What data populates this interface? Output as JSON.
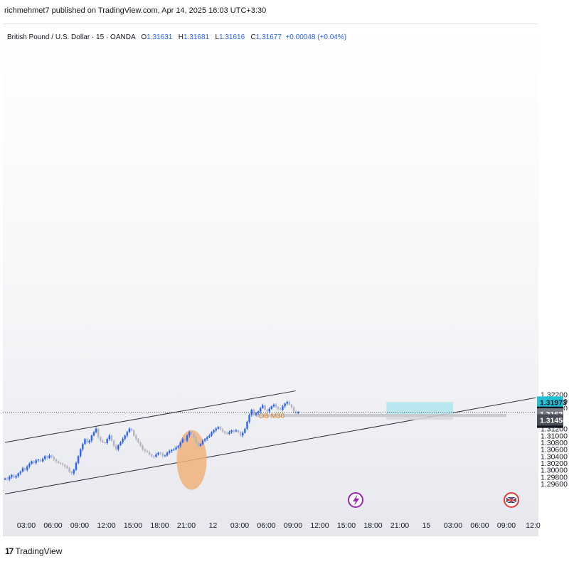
{
  "publish_line": "richmehmet7 published on TradingView.com, Apr 14, 2025 16:03 UTC+3:30",
  "legend": {
    "symbol": "British Pound / U.S. Dollar · 15 · OANDA",
    "open_label": "O",
    "open": "1.31631",
    "high_label": "H",
    "high": "1.31681",
    "low_label": "L",
    "low": "1.31616",
    "close_label": "C",
    "close": "1.31677",
    "change": "+0.00048 (+0.04%)"
  },
  "brand": {
    "logo": "17",
    "name": "TradingView"
  },
  "colors": {
    "up": "#2962ff",
    "down": "#b2b5be",
    "target_zone": "#b2e5ee",
    "ob_zone": "#c4c6cc",
    "circle": "#f0b27a",
    "last_price": "#131722",
    "target_tag": "#22c1d6"
  },
  "chart_data": {
    "type": "candlestick",
    "title": "British Pound / U.S. Dollar · 15 · OANDA",
    "ylim": [
      1.295,
      1.3225
    ],
    "y_ticks": [
      "1.29600",
      "1.29800",
      "1.30000",
      "1.30200",
      "1.30400",
      "1.30600",
      "1.30800",
      "1.31000",
      "1.31200",
      "1.31400",
      "1.31600",
      "1.31800",
      "1.32000",
      "1.32200"
    ],
    "x_ticks": [
      "03:00",
      "06:00",
      "09:00",
      "12:00",
      "15:00",
      "18:00",
      "21:00",
      "12",
      "03:00",
      "06:00",
      "09:00",
      "12:00",
      "15:00",
      "18:00",
      "21:00",
      "15",
      "03:00",
      "06:00",
      "09:00",
      "12:0"
    ],
    "price_labels": [
      {
        "label": "target",
        "value": "1.31973"
      },
      {
        "label": "last",
        "value": "1.31677",
        "countdown": "11:34"
      },
      {
        "label": "ob_top",
        "value": "1.31628"
      },
      {
        "label": "ob_bottom",
        "value": "1.31456"
      }
    ],
    "annotation_text": "OB M30",
    "zones": [
      {
        "name": "target-zone",
        "from_y": 1.31628,
        "to_y": 1.31973,
        "x_start_tick": 13.5,
        "x_end_tick": 16.0
      },
      {
        "name": "ob-zone",
        "from_y": 1.3154,
        "to_y": 1.31628,
        "x_start_tick": 8.6,
        "x_end_tick": 18.0
      },
      {
        "name": "ob-zone-lower",
        "from_y": 1.31456,
        "to_y": 1.3154,
        "x_start_tick": 13.5,
        "x_end_tick": 16.0
      }
    ],
    "trendlines": [
      {
        "name": "upper-channel-line",
        "points": [
          [
            -0.8,
            1.308
          ],
          [
            10.1,
            1.323
          ]
        ]
      },
      {
        "name": "lower-channel-line",
        "points": [
          [
            -0.8,
            1.293
          ],
          [
            19.1,
            1.321
          ]
        ]
      }
    ],
    "circle": {
      "x_tick": 6.2,
      "y": 1.3029
    },
    "series": [
      {
        "name": "GBPUSD",
        "x_tick_start": -0.8,
        "x_tick_step": 0.0833,
        "close": [
          1.2975,
          1.2972,
          1.298,
          1.2985,
          1.2978,
          1.2982,
          1.299,
          1.2995,
          1.3005,
          1.3,
          1.301,
          1.3018,
          1.3025,
          1.302,
          1.3028,
          1.303,
          1.3025,
          1.3032,
          1.304,
          1.3035,
          1.3042,
          1.3038,
          1.303,
          1.3025,
          1.302,
          1.3018,
          1.3015,
          1.301,
          1.3005,
          1.2995,
          1.299,
          1.3,
          1.302,
          1.304,
          1.306,
          1.3075,
          1.309,
          1.308,
          1.3085,
          1.31,
          1.311,
          1.312,
          1.3095,
          1.3085,
          1.308,
          1.3078,
          1.309,
          1.31,
          1.3085,
          1.307,
          1.306,
          1.3072,
          1.308,
          1.309,
          1.31,
          1.311,
          1.312,
          1.3115,
          1.31,
          1.309,
          1.308,
          1.307,
          1.306,
          1.3055,
          1.3052,
          1.3045,
          1.304,
          1.3038,
          1.3045,
          1.305,
          1.3048,
          1.304,
          1.3042,
          1.305,
          1.3055,
          1.3058,
          1.306,
          1.3066,
          1.307,
          1.308,
          1.309,
          1.3085,
          1.31,
          1.311,
          1.3105,
          1.3095,
          1.308,
          1.307,
          1.3075,
          1.3085,
          1.309,
          1.3095,
          1.31,
          1.311,
          1.3115,
          1.312,
          1.3125,
          1.3118,
          1.3112,
          1.3108,
          1.3105,
          1.311,
          1.3115,
          1.3112,
          1.3115,
          1.311,
          1.31,
          1.3108,
          1.312,
          1.314,
          1.316,
          1.3175,
          1.316,
          1.3165,
          1.317,
          1.318,
          1.3188,
          1.3175,
          1.317,
          1.3178,
          1.3185,
          1.319,
          1.3183,
          1.3178,
          1.3175,
          1.3185,
          1.3193,
          1.3198,
          1.319,
          1.3182,
          1.317,
          1.3165,
          1.3168
        ]
      }
    ]
  }
}
